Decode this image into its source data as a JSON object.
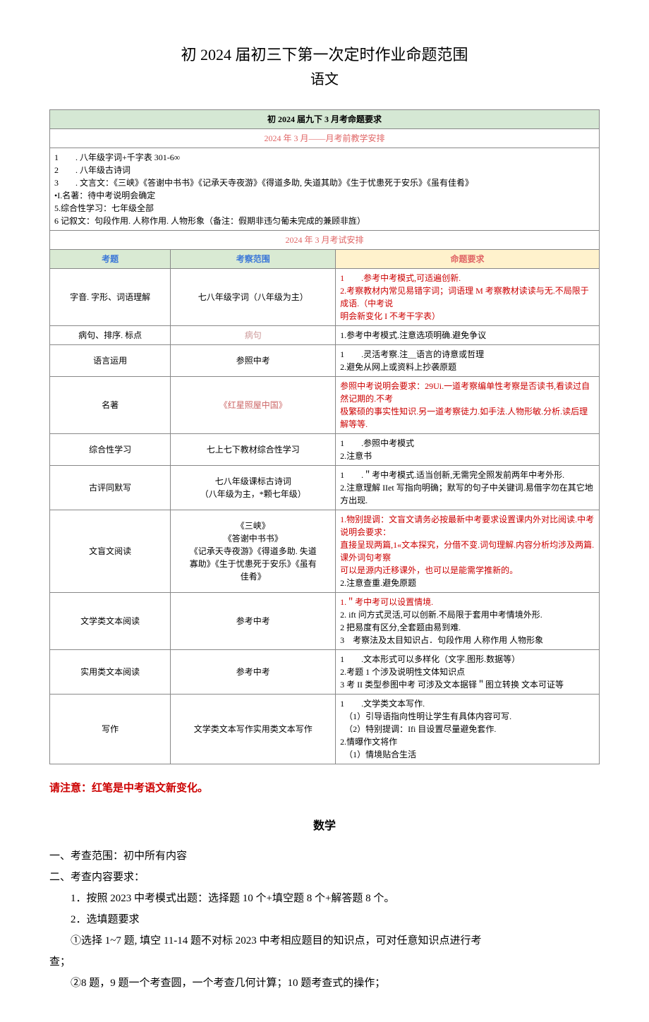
{
  "title_main": "初 2024 届初三下第一次定时作业命题范围",
  "title_sub": "语文",
  "table_header": "初 2024 届九下 3 月考命题要求",
  "teaching_band": "2024 年 3 月——月考前教学安排",
  "teaching_plan_lines": [
    "1　　. 八年级字词+千字表 301-6∞",
    "2　　. 八年级古诗词",
    "3　　. 文言文：《三峡》《答谢中书书》《记承天寺夜游》《得道多助, 失道其助》《生于忧患死于安乐》《虽有佳肴》",
    "•I.名著：待中考说明会确定",
    "5.综合性学习：七年级全部",
    "6 记叙文：句段作用. 人称作用. 人物形象（备注：假期非违匀葡未完成的兼顾非旌）"
  ],
  "exam_band": "2024 年 3 月考试安排",
  "col_headers": {
    "a": "考题",
    "b": "考察范围",
    "c": "命题要求"
  },
  "rows": [
    {
      "topic": "字音. 字形、词语理解",
      "scope": "七八年级字词（八年级为主）",
      "req": "1　　.参考中考模式,可适遍创新.\n2.考察教材内常见易错字词；词语理 M 考察教材读读与无.不局限于成语.（中考说\n明会新变化 I 不考干字表）",
      "req_red": true
    },
    {
      "topic": "病句、排序. 标点",
      "scope": "病句",
      "scope_color": "#cc9999",
      "req": "1.参考中考模式.注意选项明确.避免争议"
    },
    {
      "topic": "语言运用",
      "scope": "参照中考",
      "req": "1　　.灵活考察.注＿语言的诗意或哲理\n2.避免从网上或资料上抄袭原题"
    },
    {
      "topic": "名著",
      "scope": "《红星照屋中国》",
      "scope_color": "#cc6666",
      "req": "参照中考说明会要求：29Ui.一道考察编单性考察是否读书,看读过自然记期的.不考\n极繁硕的事实性知识.另一道考察徒力.如手法.人物形敏.分析.读后理解等等.",
      "req_red": true
    },
    {
      "topic": "综合性学习",
      "scope": "七上七下教材综合性学习",
      "req": "1　　.参照中考模式\n2.注意书"
    },
    {
      "topic": "古评同默写",
      "scope": "七八年级课标古诗词\n（八年级为主，*颗七年级）",
      "req": "1　　.＂考中考模式.适当创新,无需完全照发前两年中考外形.\n2.注意理解 IIet 写指向明确；默写的句子中关键词.易借字勿在其它地方出现."
    },
    {
      "topic": "文盲文阅读",
      "scope": "《三峡》\n《答谢中书书》\n《记承天寺夜游》《得道多助. 失道\n寡助》《生于忧患死于安乐》《虽有\n佳肴》",
      "req_red_part": "1.物别提调：文盲文请务必按最新中考要求设置课内外对比阅读.中考说明会要求：\n直接呈现两篇,1«文本探究，分借不变.词句理解.内容分析均涉及两篇.课外词句考察\n可以是源内迁移课外，也可以是能需学推新的。",
      "req_plain": "2.注意查重.避免原题"
    },
    {
      "topic": "文学类文本阅读",
      "scope": "参考中考",
      "req": "1.＂考中考可以设置情境.\n2.  ift 问方式灵活,可以创新.不局限于套用中考情境外形.\n2 把易度有区分,全套题由易到难.\n3　考察法及太目知识占．句段作用 人称作用 人物形象",
      "req_line1_red": true
    },
    {
      "topic": "实用类文本阅读",
      "scope": "参考中考",
      "req": "1　　.文本形式可以多样化（文字.图形.数据等）\n2.考题 1 个涉及说明性文体知识点\n3 考 II 类型参图中考 可涉及文本据铎＂图立转换 文本可证等"
    },
    {
      "topic": "写作",
      "scope": "文学类文本写作实用类文本写作",
      "req": "1　　.文学类文本写作.\n　（1）引导语指向性明让学生有具体内容可写.\n　（2）特别提调：Ifi 目设置尽量避免套作.\n2.情曝作文将作\n　（1）情境贴合生活"
    }
  ],
  "note": "请注意：红笔是中考语文新变化。",
  "math": {
    "title": "数学",
    "lines": [
      "一、考查范围：初中所有内容",
      "二、考查内容要求：",
      "1．按照 2023 中考模式出题：选择题 10 个+填空题 8 个+解答题 8 个。",
      "2．选填题要求",
      "①选择 1~7 题, 填空 11-14 题不对标 2023 中考相应题目的知识点，可对任意知识点进行考",
      "查；",
      "②8 题，9 题一个考查圆，一个考查几何计算；10 题考查式的操作；"
    ]
  }
}
